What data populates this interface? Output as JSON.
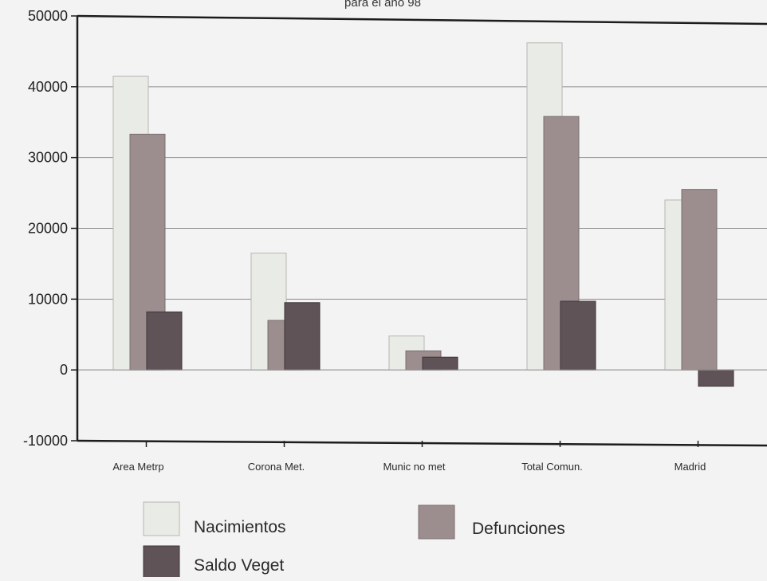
{
  "chart_data": {
    "type": "bar",
    "title": "para el año 98",
    "xlabel": "",
    "ylabel": "",
    "ylim": [
      -10000,
      50000
    ],
    "yticks": [
      50000,
      40000,
      30000,
      20000,
      10000,
      0,
      -10000
    ],
    "ytick_labels": [
      "50000",
      "40000",
      "30000",
      "20000",
      "10000",
      "0",
      "-10000"
    ],
    "categories": [
      "Area Metrp",
      "Corona Met.",
      "Munic no met",
      "Total Comun.",
      "Madrid"
    ],
    "series": [
      {
        "name": "Nacimientos",
        "values": [
          41500,
          16500,
          4800,
          46200,
          24000
        ]
      },
      {
        "name": "Defunciones",
        "values": [
          33300,
          7000,
          2700,
          35800,
          25500
        ]
      },
      {
        "name": "Saldo Veget",
        "values": [
          8200,
          9500,
          1800,
          9700,
          -2300
        ]
      }
    ],
    "grid": true,
    "legend_position": "bottom"
  },
  "colors": {
    "nacimientos": "#e9ebe6",
    "defunciones": "#9c8d8f",
    "saldo": "#5f5358",
    "axis": "#1c1c1c",
    "grid": "#8e8e8e",
    "background": "#f4f3f3"
  }
}
